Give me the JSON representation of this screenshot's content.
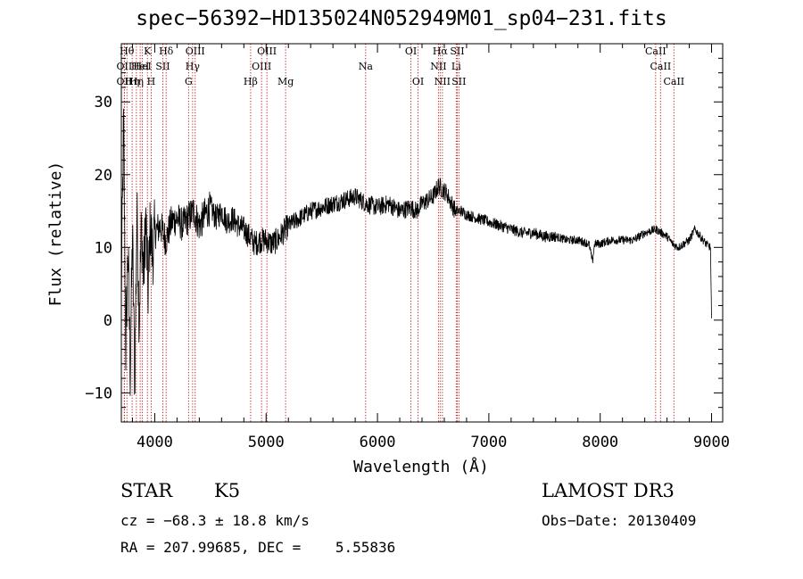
{
  "chart_data": {
    "type": "line",
    "title": "spec−56392−HD135024N052949M01_sp04−231.fits",
    "xlabel": "Wavelength (Å)",
    "ylabel": "Flux (relative)",
    "xlim": [
      3700,
      9100
    ],
    "ylim": [
      -14,
      38
    ],
    "xticks": [
      {
        "value": 4000,
        "label": "4000"
      },
      {
        "value": 5000,
        "label": "5000"
      },
      {
        "value": 6000,
        "label": "6000"
      },
      {
        "value": 7000,
        "label": "7000"
      },
      {
        "value": 8000,
        "label": "8000"
      },
      {
        "value": 9000,
        "label": "9000"
      }
    ],
    "yticks": [
      {
        "value": -10,
        "label": "−10"
      },
      {
        "value": 0,
        "label": "0"
      },
      {
        "value": 10,
        "label": "10"
      },
      {
        "value": 20,
        "label": "20"
      },
      {
        "value": 30,
        "label": "30"
      }
    ],
    "series": [
      {
        "name": "flux",
        "x": [
          3700,
          3720,
          3740,
          3760,
          3780,
          3800,
          3820,
          3840,
          3860,
          3880,
          3900,
          3920,
          3940,
          3960,
          3980,
          4000,
          4050,
          4100,
          4150,
          4200,
          4250,
          4300,
          4350,
          4400,
          4450,
          4500,
          4550,
          4600,
          4650,
          4700,
          4750,
          4800,
          4850,
          4900,
          4950,
          5000,
          5050,
          5100,
          5150,
          5200,
          5300,
          5400,
          5500,
          5600,
          5700,
          5800,
          5900,
          6000,
          6100,
          6200,
          6300,
          6350,
          6400,
          6450,
          6500,
          6550,
          6580,
          6620,
          6650,
          6700,
          6750,
          6800,
          6900,
          7000,
          7100,
          7200,
          7300,
          7400,
          7500,
          7600,
          7700,
          7800,
          7900,
          7930,
          7950,
          8000,
          8100,
          8200,
          8300,
          8400,
          8500,
          8550,
          8600,
          8650,
          8700,
          8800,
          8850,
          8900,
          8950,
          8990,
          9000
        ],
        "y": [
          3,
          27,
          -4,
          10,
          -7,
          12,
          -9,
          15,
          0,
          13,
          6,
          14,
          4,
          13,
          9,
          12,
          13,
          11,
          13.5,
          14,
          13,
          14,
          15,
          13,
          14.5,
          15.5,
          14,
          15,
          13.5,
          14,
          13,
          12.5,
          11.5,
          10.5,
          11,
          11,
          10.5,
          11,
          12,
          13,
          14,
          15,
          15.5,
          16,
          16.5,
          17,
          16,
          15.5,
          16,
          15,
          15.5,
          15,
          16,
          16.5,
          17,
          18.5,
          18,
          17.5,
          16.5,
          15,
          15,
          14.5,
          14,
          13.5,
          13,
          12.5,
          12,
          12,
          11.5,
          11.5,
          11,
          11,
          10.5,
          8,
          10.5,
          10.5,
          11,
          11,
          11,
          12,
          12.5,
          12,
          11.5,
          10.5,
          10,
          11,
          12.5,
          11.5,
          10.5,
          10,
          0
        ]
      }
    ],
    "lines": [
      {
        "wl": 3727,
        "label": "OII",
        "row": 2
      },
      {
        "wl": 3727,
        "label": "OII",
        "row": 3
      },
      {
        "wl": 3750,
        "label": "Hθ",
        "row": 1
      },
      {
        "wl": 3797,
        "label": "Hη",
        "row": 3
      },
      {
        "wl": 3835,
        "label": "Hη",
        "row": 3
      },
      {
        "wl": 3869,
        "label": "HeI",
        "row": 2
      },
      {
        "wl": 3889,
        "label": "HeI",
        "row": 2
      },
      {
        "wl": 3934,
        "label": "K",
        "row": 1
      },
      {
        "wl": 3968,
        "label": "H",
        "row": 3
      },
      {
        "wl": 4072,
        "label": "SII",
        "row": 2
      },
      {
        "wl": 4102,
        "label": "Hδ",
        "row": 1
      },
      {
        "wl": 4304,
        "label": "G",
        "row": 3
      },
      {
        "wl": 4340,
        "label": "Hγ",
        "row": 2
      },
      {
        "wl": 4363,
        "label": "OIII",
        "row": 1
      },
      {
        "wl": 4861,
        "label": "Hβ",
        "row": 3
      },
      {
        "wl": 4959,
        "label": "OIII",
        "row": 2
      },
      {
        "wl": 5007,
        "label": "OIII",
        "row": 1
      },
      {
        "wl": 5175,
        "label": "Mg",
        "row": 3
      },
      {
        "wl": 5894,
        "label": "Na",
        "row": 2
      },
      {
        "wl": 6300,
        "label": "OI",
        "row": 1
      },
      {
        "wl": 6364,
        "label": "OI",
        "row": 3
      },
      {
        "wl": 6548,
        "label": "NII",
        "row": 2
      },
      {
        "wl": 6563,
        "label": "Hα",
        "row": 1
      },
      {
        "wl": 6583,
        "label": "NII",
        "row": 3
      },
      {
        "wl": 6707,
        "label": "Li",
        "row": 2
      },
      {
        "wl": 6716,
        "label": "SII",
        "row": 1
      },
      {
        "wl": 6731,
        "label": "SII",
        "row": 3
      },
      {
        "wl": 8498,
        "label": "CaII",
        "row": 1
      },
      {
        "wl": 8542,
        "label": "CaII",
        "row": 2
      },
      {
        "wl": 8662,
        "label": "CaII",
        "row": 3
      }
    ]
  },
  "info": {
    "class_label": "STAR",
    "subclass": "K5",
    "survey": "LAMOST DR3",
    "cz": "cz = −68.3 ± 18.8 km/s",
    "obs_date": "Obs−Date: 20130409",
    "radec": "RA = 207.99685, DEC =    5.55836"
  },
  "colors": {
    "line_marker": "#c00000",
    "spectrum": "#000000",
    "axes": "#000000"
  }
}
